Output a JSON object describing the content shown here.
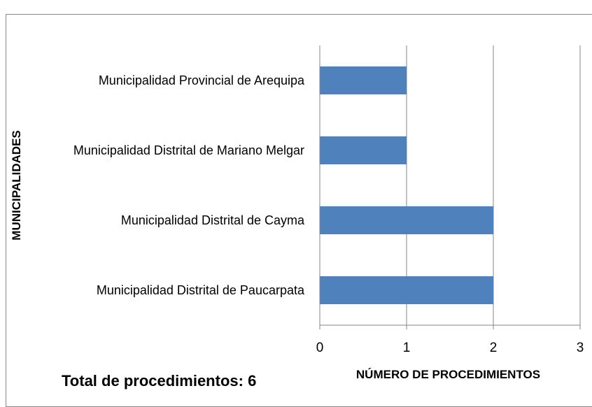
{
  "chart_data": {
    "type": "bar",
    "orientation": "horizontal",
    "categories": [
      "Municipalidad Provincial de Arequipa",
      "Municipalidad Distrital de Mariano Melgar",
      "Municipalidad Distrital de Cayma",
      "Municipalidad Distrital de Paucarpata"
    ],
    "values": [
      1,
      1,
      2,
      2
    ],
    "color": "#4f81bd",
    "xlim": [
      0,
      3
    ],
    "xticks": [
      0,
      1,
      2,
      3
    ],
    "grid": true,
    "xlabel": "NÚMERO DE PROCEDIMIENTOS",
    "ylabel": "MUNICIPALIDADES",
    "annotation": "Total de procedimientos: 6"
  }
}
